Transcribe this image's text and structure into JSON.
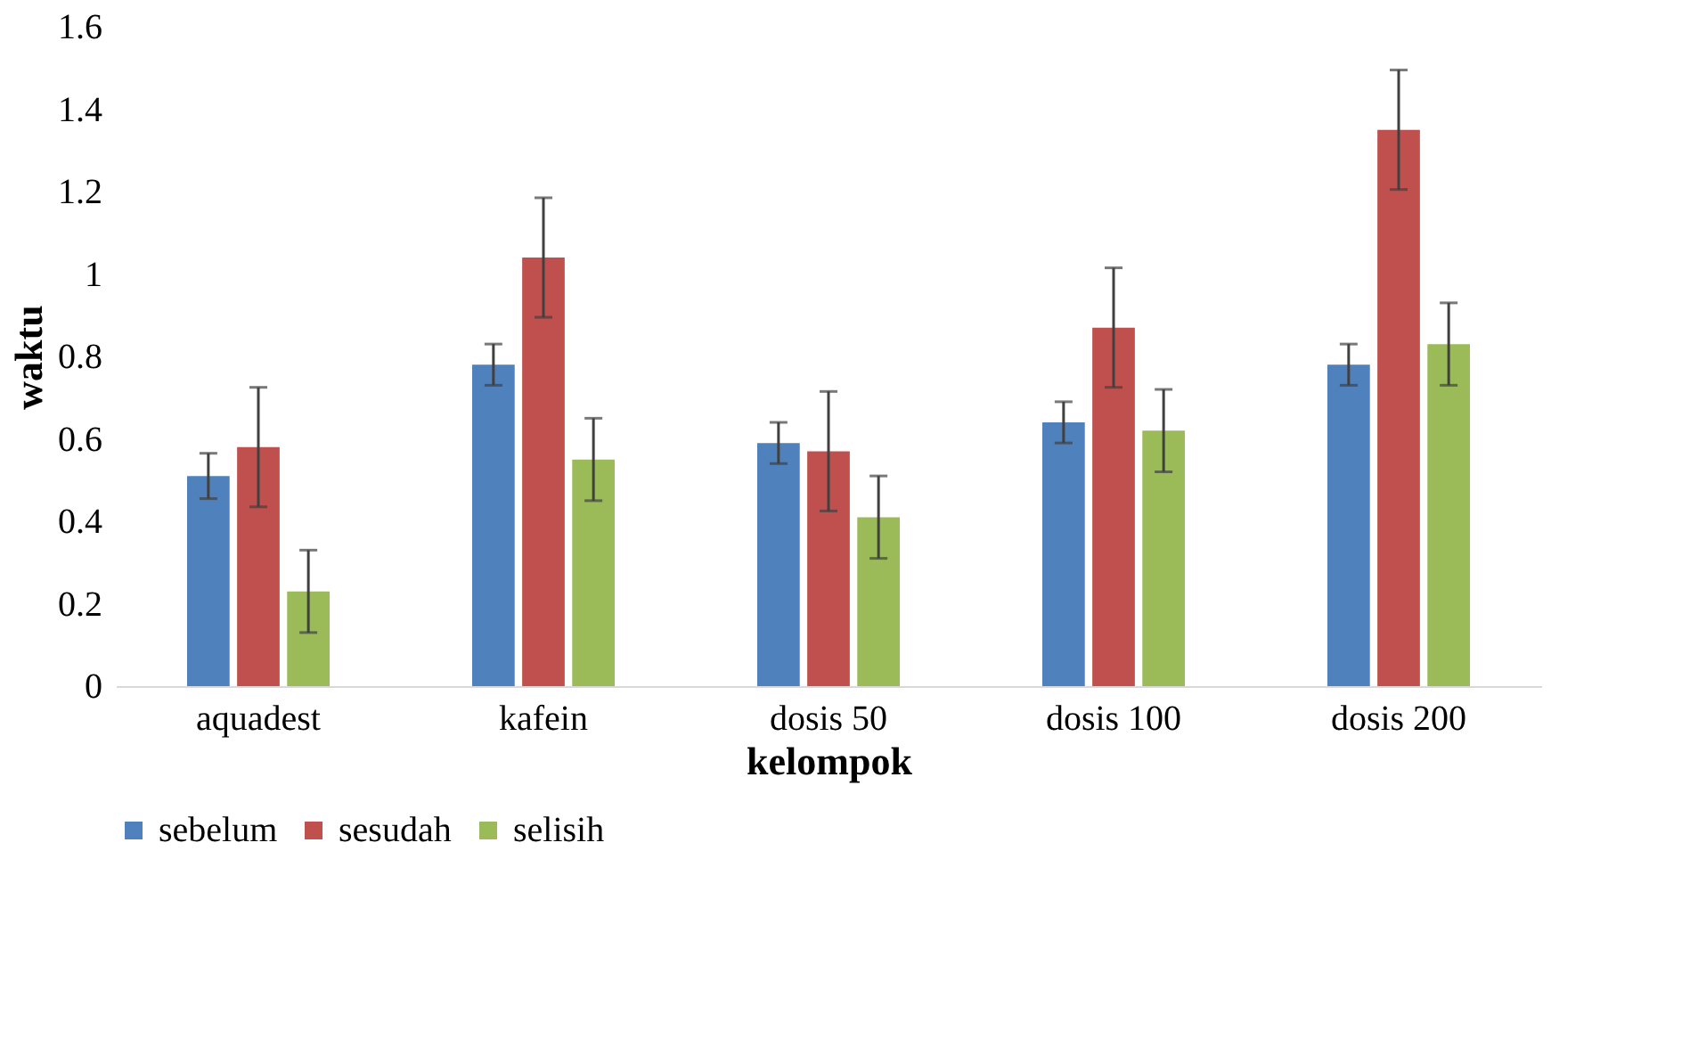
{
  "chart_data": {
    "type": "bar",
    "xlabel": "kelompok",
    "ylabel": "waktu",
    "categories": [
      "aquadest",
      "kafein",
      "dosis 50",
      "dosis 100",
      "dosis 200"
    ],
    "series": [
      {
        "name": "sebelum",
        "color": "#4f81bd",
        "values": [
          0.51,
          0.78,
          0.59,
          0.64,
          0.78
        ],
        "errors": [
          0.055,
          0.05,
          0.05,
          0.05,
          0.05
        ]
      },
      {
        "name": "sesudah",
        "color": "#c0504d",
        "values": [
          0.58,
          1.04,
          0.57,
          0.87,
          1.35
        ],
        "errors": [
          0.145,
          0.145,
          0.145,
          0.145,
          0.145
        ]
      },
      {
        "name": "selisih",
        "color": "#9bbb59",
        "values": [
          0.23,
          0.55,
          0.41,
          0.62,
          0.83
        ],
        "errors": [
          0.1,
          0.1,
          0.1,
          0.1,
          0.1
        ]
      }
    ],
    "ylim": [
      0,
      1.6
    ],
    "yticks": [
      0,
      0.2,
      0.4,
      0.6,
      0.8,
      1,
      1.2,
      1.4,
      1.6
    ],
    "grid": false,
    "legend": "bottom"
  }
}
